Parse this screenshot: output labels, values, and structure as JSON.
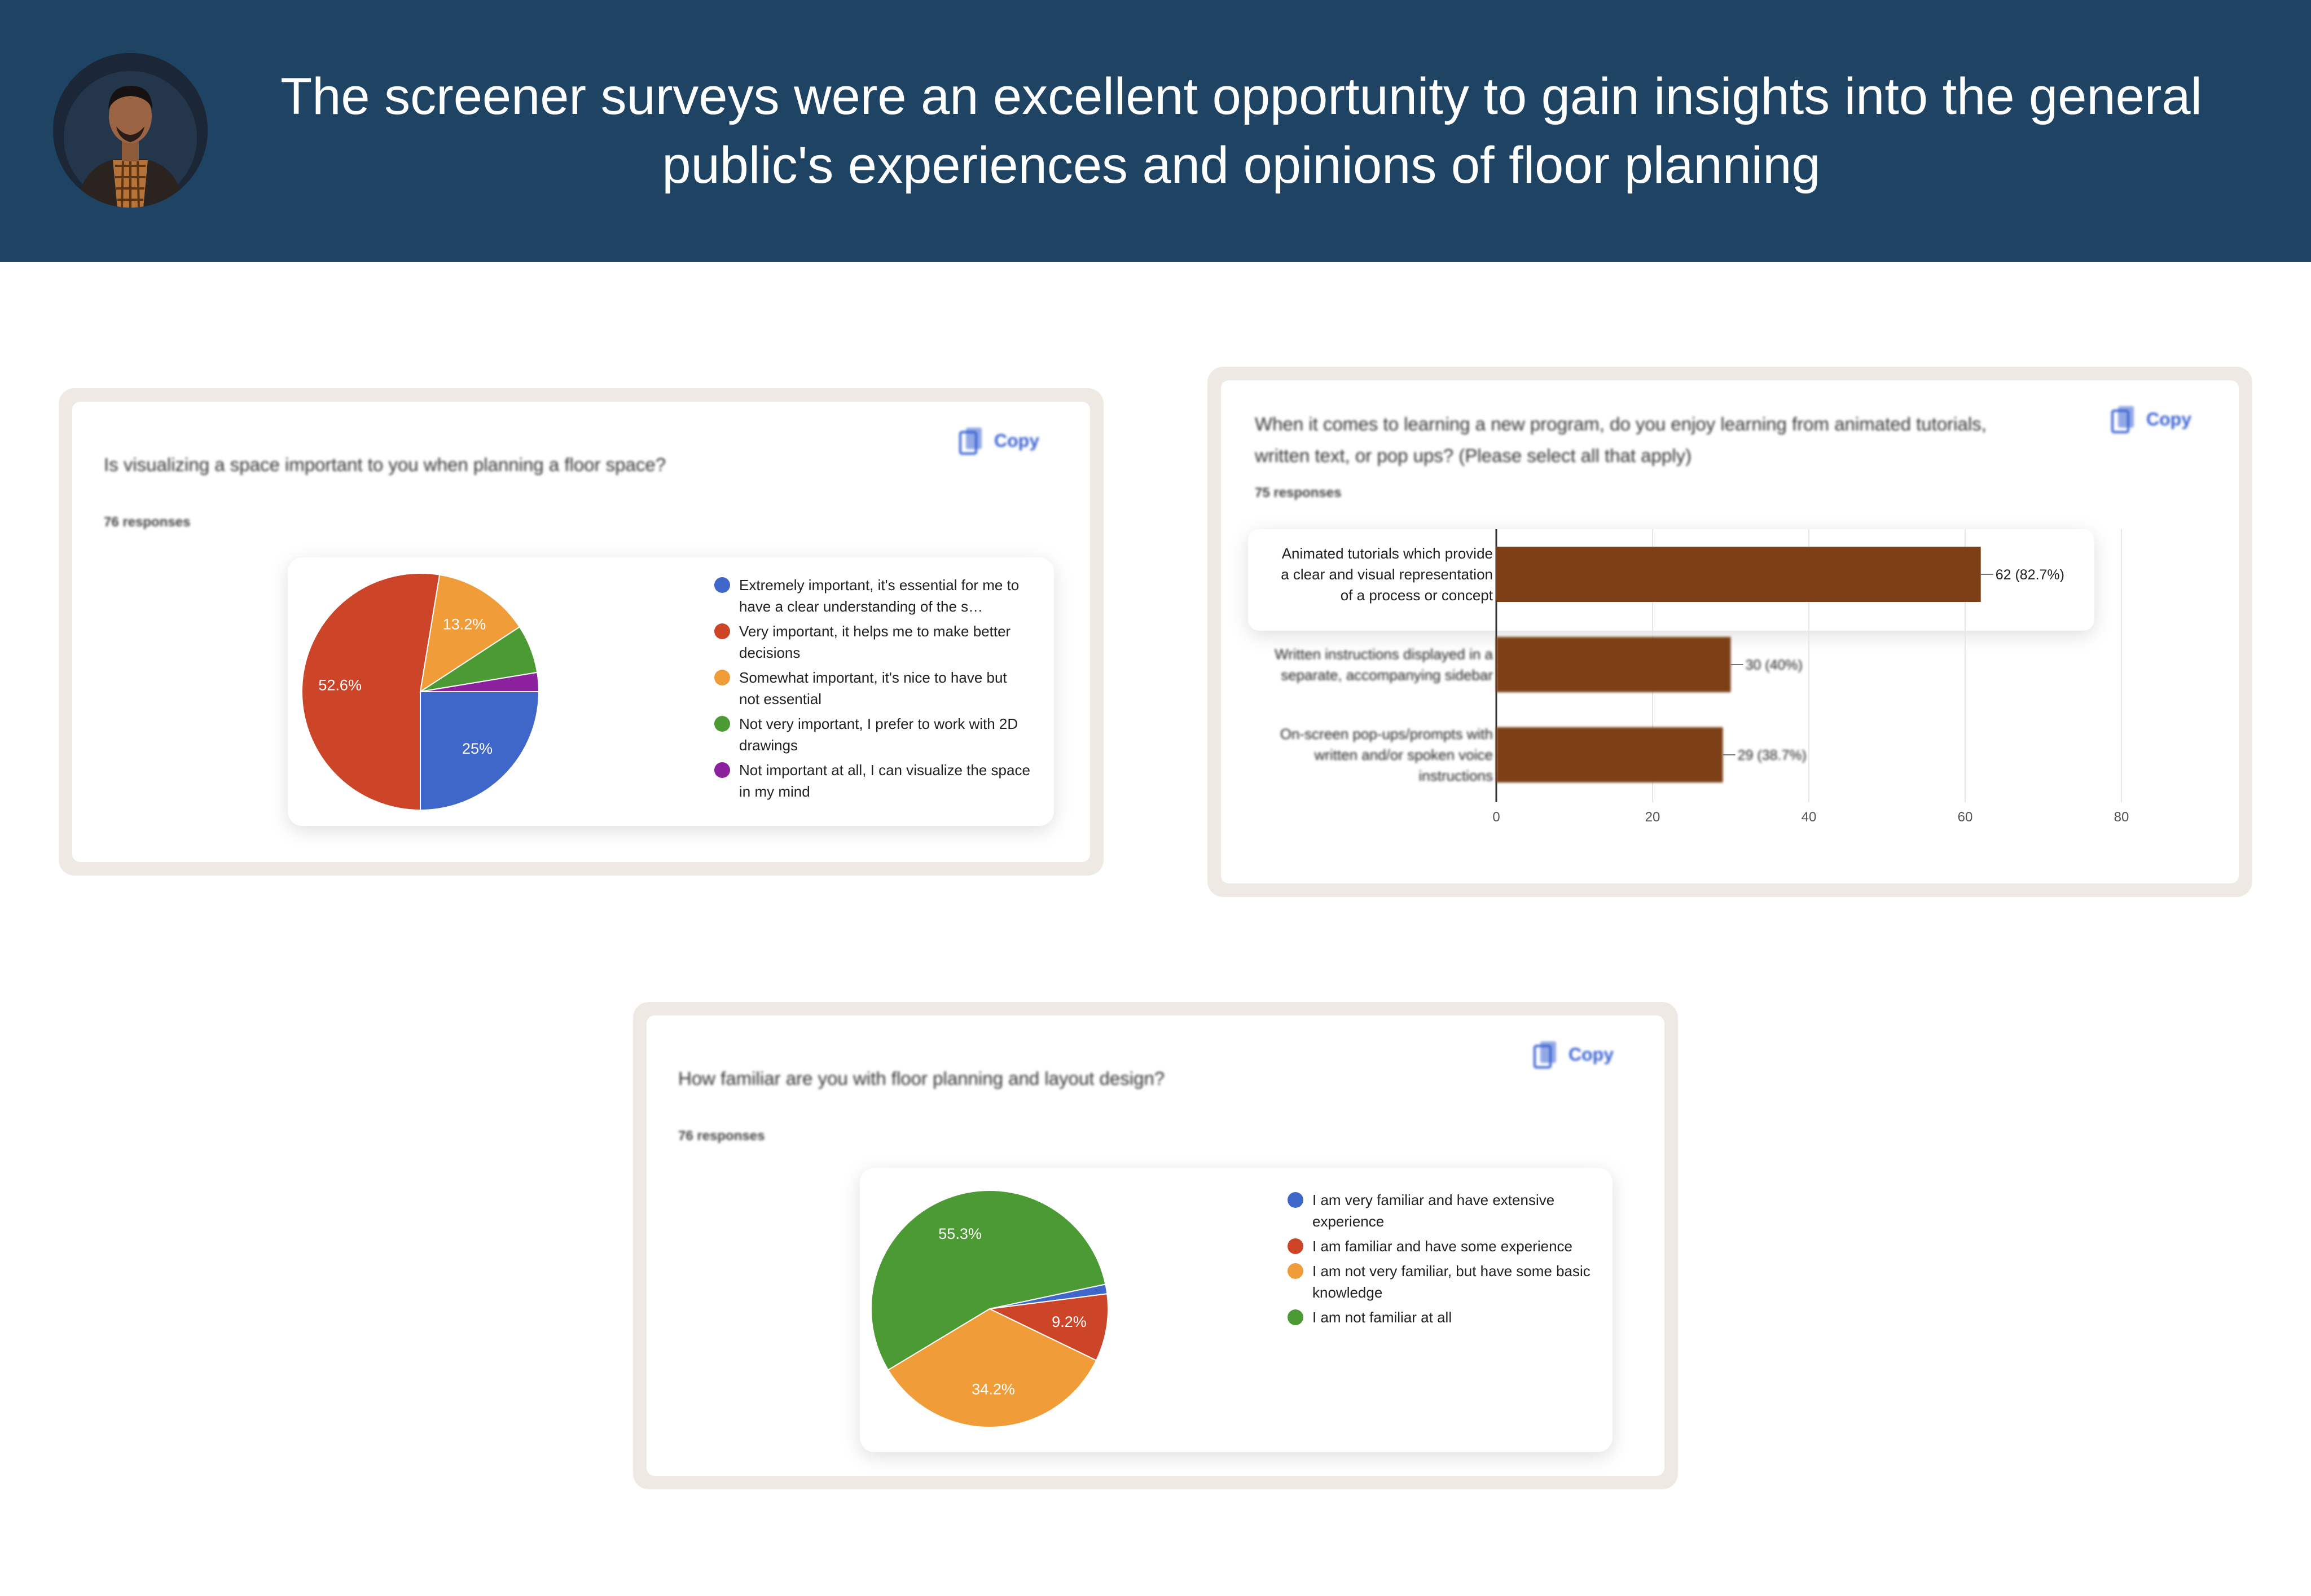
{
  "header": {
    "headline": "The screener surveys were an excellent opportunity to gain insights into the general public's experiences and opinions of floor planning"
  },
  "colors": {
    "header_bg": "#1e4363",
    "blue": "#3f67c9",
    "red": "#cd4528",
    "orange": "#f09c38",
    "green": "#4c9a33",
    "purple": "#8b219c",
    "bar": "#7c3f16",
    "copy": "#3b63d1"
  },
  "copy_label": "Copy",
  "chart_data": [
    {
      "type": "pie",
      "title": "Is visualizing a space important to you when planning a floor space?",
      "responses": "76 responses",
      "slices": [
        {
          "label": "Extremely important, it's essential for me to have a clear understanding of the s…",
          "value": 25,
          "display": "25%",
          "color": "#3f67c9"
        },
        {
          "label": "Very important, it helps me to make better decisions",
          "value": 52.6,
          "display": "52.6%",
          "color": "#cd4528"
        },
        {
          "label": "Somewhat important, it's nice to have but not essential",
          "value": 13.2,
          "display": "13.2%",
          "color": "#f09c38"
        },
        {
          "label": "Not very important, I prefer to work with 2D drawings",
          "value": 6.6,
          "display": "",
          "color": "#4c9a33"
        },
        {
          "label": "Not important at all, I can visualize the space in my mind",
          "value": 2.6,
          "display": "",
          "color": "#8b219c"
        }
      ]
    },
    {
      "type": "bar",
      "title": "When it comes to learning a new program, do you enjoy learning from animated tutorials, written text, or pop ups? (Please select all that apply)",
      "responses": "75 responses",
      "categories": [
        "Animated tutorials which provide a clear and visual representation of a process or concept",
        "Written instructions displayed in a separate, accompanying sidebar",
        "On-screen pop-ups/prompts with written and/or spoken voice instructions"
      ],
      "category_lines": [
        [
          "Animated tutorials which provide",
          "a clear and visual representation",
          "of a process or concept"
        ],
        [
          "Written instructions displayed in a",
          "separate, accompanying sidebar"
        ],
        [
          "On-screen pop-ups/prompts with",
          "written and/or spoken voice",
          "instructions"
        ]
      ],
      "values": [
        62,
        30,
        29
      ],
      "value_labels": [
        "62 (82.7%)",
        "30 (40%)",
        "29 (38.7%)"
      ],
      "xlim": [
        0,
        80
      ],
      "xticks": [
        0,
        20,
        40,
        60,
        80
      ],
      "grid": true,
      "orientation": "horizontal"
    },
    {
      "type": "pie",
      "title": "How familiar are you with floor planning and layout design?",
      "responses": "76 responses",
      "slices": [
        {
          "label": "I am very familiar and have extensive experience",
          "value": 1.3,
          "display": "",
          "color": "#3f67c9"
        },
        {
          "label": "I am familiar and have some experience",
          "value": 9.2,
          "display": "9.2%",
          "color": "#cd4528"
        },
        {
          "label": "I am not very familiar, but have some basic knowledge",
          "value": 34.2,
          "display": "34.2%",
          "color": "#f09c38"
        },
        {
          "label": "I am not familiar at all",
          "value": 55.3,
          "display": "55.3%",
          "color": "#4c9a33"
        }
      ]
    }
  ]
}
